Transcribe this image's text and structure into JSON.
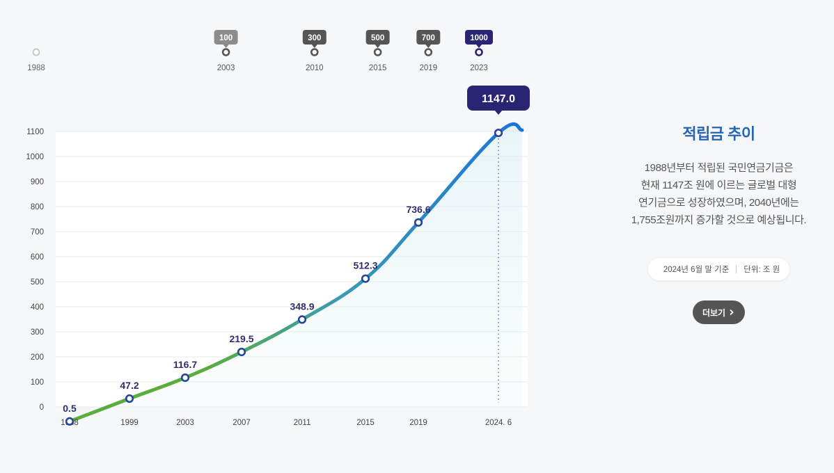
{
  "timeline": {
    "start": {
      "year": "1988"
    },
    "milestones": [
      {
        "year": "2003",
        "label": "100"
      },
      {
        "year": "2010",
        "label": "300"
      },
      {
        "year": "2015",
        "label": "500"
      },
      {
        "year": "2019",
        "label": "700"
      },
      {
        "year": "2023",
        "label": "1000",
        "highlight": true
      }
    ]
  },
  "info": {
    "title": "적립금 추이",
    "description": [
      "1988년부터 적립된 국민연금기금은",
      "현재 1147조 원에 이르는 글로벌 대형",
      "연기금으로 성장하였으며, 2040년에는",
      "1,755조원까지 증가할 것으로 예상됩니다."
    ],
    "basis": "2024년 6월 말 기준",
    "unit": "단위: 조 원",
    "more_label": "더보기"
  },
  "chart_data": {
    "type": "line",
    "title": "적립금 추이",
    "xlabel": "",
    "ylabel": "",
    "ylim": [
      0,
      1100
    ],
    "yticks": [
      0,
      100,
      200,
      300,
      400,
      500,
      600,
      700,
      800,
      900,
      1000,
      1100
    ],
    "categories": [
      "1988",
      "1999",
      "2003",
      "2007",
      "2011",
      "2015",
      "2019",
      "2024. 6"
    ],
    "series": [
      {
        "name": "적립금",
        "values": [
          0.5,
          47.2,
          116.7,
          219.5,
          348.9,
          512.3,
          736.6,
          1147.0
        ],
        "labels": [
          "0.5",
          "47.2",
          "116.7",
          "219.5",
          "348.9",
          "512.3",
          "736.6",
          "1147.0"
        ]
      }
    ],
    "colors": {
      "line_start": "#5aad3c",
      "line_mid": "#3a9bb5",
      "line_end": "#1a73d9",
      "point_stroke": "#24459a",
      "callout": "#2b2472",
      "grid": "#e6e8ec",
      "axis_text": "#444444",
      "label_text": "#2f2d6e"
    }
  }
}
